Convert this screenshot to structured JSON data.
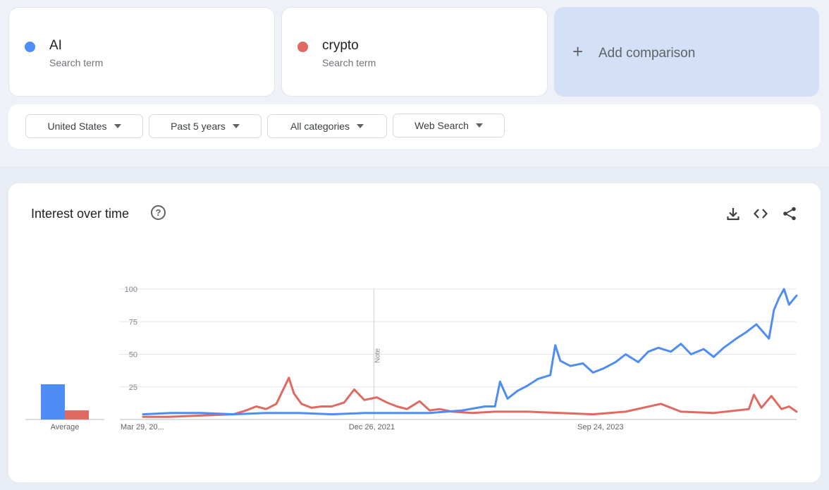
{
  "terms": [
    {
      "name": "AI",
      "sub": "Search term",
      "color": "#4e8df5"
    },
    {
      "name": "crypto",
      "sub": "Search term",
      "color": "#e06a62"
    }
  ],
  "add_comparison": {
    "icon": "+",
    "label": "Add comparison"
  },
  "filters": {
    "region": "United States",
    "period": "Past 5 years",
    "category": "All categories",
    "search_type": "Web Search"
  },
  "panel": {
    "title": "Interest over time",
    "help_icon": "?",
    "actions": [
      "download-icon",
      "embed-icon",
      "share-icon"
    ]
  },
  "chart_data": {
    "type": "line",
    "title": "Interest over time",
    "ylim": [
      0,
      100
    ],
    "yticks": [
      25,
      50,
      75,
      100
    ],
    "x_range": [
      "2020-03-29",
      "2025-03-23"
    ],
    "x_tick_labels": [
      {
        "date": "2020-03-29",
        "label": "Mar 29, 20..."
      },
      {
        "date": "2021-12-26",
        "label": "Dec 26, 2021"
      },
      {
        "date": "2023-09-24",
        "label": "Sep 24, 2023"
      }
    ],
    "note": {
      "date": "2022-01-01",
      "label": "Note"
    },
    "average": {
      "label": "Average",
      "values": [
        {
          "series": "AI",
          "value": 27
        },
        {
          "series": "crypto",
          "value": 7
        }
      ]
    },
    "series": [
      {
        "name": "AI",
        "color": "#4e8df5",
        "points": [
          [
            "2020-03-29",
            4
          ],
          [
            "2020-06-14",
            5
          ],
          [
            "2020-09-06",
            5
          ],
          [
            "2020-12-06",
            4
          ],
          [
            "2021-03-07",
            5
          ],
          [
            "2021-06-06",
            5
          ],
          [
            "2021-09-05",
            4
          ],
          [
            "2021-12-05",
            5
          ],
          [
            "2022-03-06",
            5
          ],
          [
            "2022-06-05",
            5
          ],
          [
            "2022-09-04",
            7
          ],
          [
            "2022-11-06",
            10
          ],
          [
            "2022-12-04",
            10
          ],
          [
            "2022-12-18",
            29
          ],
          [
            "2023-01-08",
            16
          ],
          [
            "2023-02-05",
            22
          ],
          [
            "2023-03-05",
            26
          ],
          [
            "2023-04-02",
            31
          ],
          [
            "2023-05-07",
            34
          ],
          [
            "2023-05-21",
            57
          ],
          [
            "2023-06-04",
            45
          ],
          [
            "2023-07-02",
            41
          ],
          [
            "2023-08-06",
            43
          ],
          [
            "2023-09-03",
            36
          ],
          [
            "2023-10-01",
            39
          ],
          [
            "2023-11-05",
            44
          ],
          [
            "2023-12-03",
            50
          ],
          [
            "2024-01-07",
            44
          ],
          [
            "2024-02-04",
            52
          ],
          [
            "2024-03-03",
            55
          ],
          [
            "2024-04-07",
            52
          ],
          [
            "2024-05-05",
            58
          ],
          [
            "2024-06-02",
            50
          ],
          [
            "2024-07-07",
            54
          ],
          [
            "2024-08-04",
            48
          ],
          [
            "2024-09-01",
            55
          ],
          [
            "2024-10-06",
            62
          ],
          [
            "2024-11-03",
            67
          ],
          [
            "2024-12-01",
            73
          ],
          [
            "2025-01-05",
            62
          ],
          [
            "2025-01-19",
            84
          ],
          [
            "2025-02-02",
            93
          ],
          [
            "2025-02-16",
            100
          ],
          [
            "2025-03-02",
            88
          ],
          [
            "2025-03-23",
            95
          ]
        ]
      },
      {
        "name": "crypto",
        "color": "#e06a62",
        "points": [
          [
            "2020-03-29",
            2
          ],
          [
            "2020-06-07",
            2
          ],
          [
            "2020-09-06",
            3
          ],
          [
            "2020-12-06",
            4
          ],
          [
            "2021-01-10",
            7
          ],
          [
            "2021-02-07",
            10
          ],
          [
            "2021-03-07",
            8
          ],
          [
            "2021-04-04",
            12
          ],
          [
            "2021-05-09",
            32
          ],
          [
            "2021-05-23",
            20
          ],
          [
            "2021-06-13",
            12
          ],
          [
            "2021-07-11",
            9
          ],
          [
            "2021-08-08",
            10
          ],
          [
            "2021-09-05",
            10
          ],
          [
            "2021-10-10",
            13
          ],
          [
            "2021-11-07",
            23
          ],
          [
            "2021-12-05",
            15
          ],
          [
            "2022-01-09",
            17
          ],
          [
            "2022-02-06",
            13
          ],
          [
            "2022-03-06",
            10
          ],
          [
            "2022-04-03",
            8
          ],
          [
            "2022-05-08",
            14
          ],
          [
            "2022-06-05",
            7
          ],
          [
            "2022-07-03",
            8
          ],
          [
            "2022-08-07",
            6
          ],
          [
            "2022-10-02",
            5
          ],
          [
            "2022-12-04",
            6
          ],
          [
            "2023-03-05",
            6
          ],
          [
            "2023-06-04",
            5
          ],
          [
            "2023-09-03",
            4
          ],
          [
            "2023-12-03",
            6
          ],
          [
            "2024-03-10",
            12
          ],
          [
            "2024-05-05",
            6
          ],
          [
            "2024-08-04",
            5
          ],
          [
            "2024-11-10",
            8
          ],
          [
            "2024-11-24",
            19
          ],
          [
            "2024-12-15",
            9
          ],
          [
            "2025-01-12",
            18
          ],
          [
            "2025-02-09",
            8
          ],
          [
            "2025-03-02",
            10
          ],
          [
            "2025-03-23",
            6
          ]
        ]
      }
    ]
  }
}
